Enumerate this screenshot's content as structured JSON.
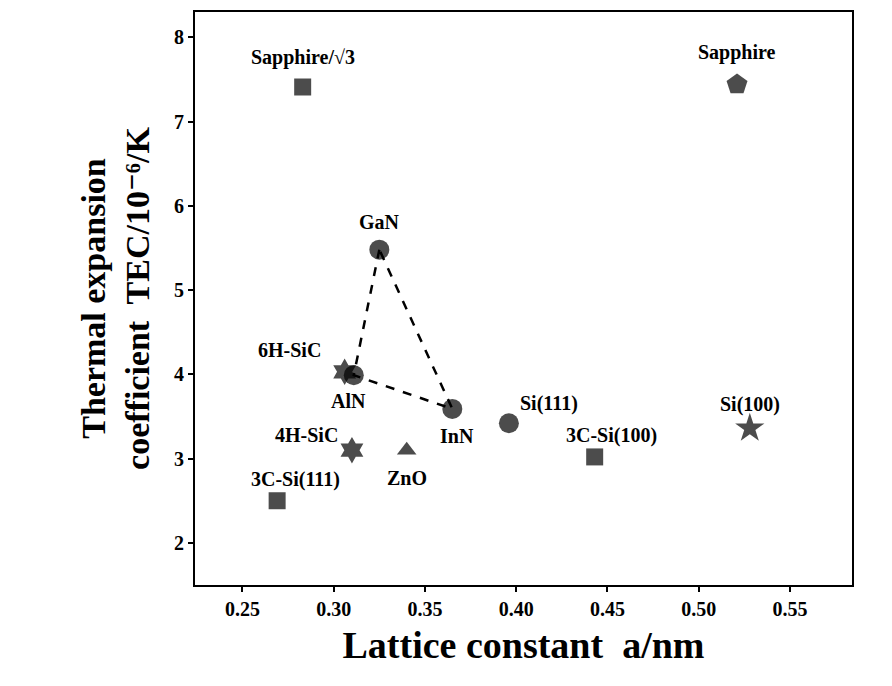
{
  "chart_data": {
    "type": "scatter",
    "xlabel": "Lattice constant  a/nm",
    "ylabel": "Thermal expansion\ncoefficient  TEC/10⁻⁶/K",
    "xlim": [
      0.224,
      0.584
    ],
    "ylim": [
      1.5,
      8.3
    ],
    "xticks": [
      0.25,
      {
        "value": 0.3,
        "label": "0.30"
      },
      0.35,
      {
        "value": 0.4,
        "label": "0.40"
      },
      0.45,
      {
        "value": 0.5,
        "label": "0.50"
      },
      0.55
    ],
    "yticks": [
      2,
      3,
      4,
      5,
      6,
      7,
      8
    ],
    "grid": false,
    "color": "#000000",
    "points": [
      {
        "label": "Sapphire/√3",
        "x": 0.283,
        "y": 7.41,
        "marker": "square"
      },
      {
        "label": "Sapphire",
        "x": 0.521,
        "y": 7.44,
        "marker": "pentagon"
      },
      {
        "label": "GaN",
        "x": 0.325,
        "y": 5.48,
        "marker": "circle"
      },
      {
        "label": "AlN",
        "x": 0.311,
        "y": 3.99,
        "marker": "circle"
      },
      {
        "label": "6H-SiC",
        "x": 0.306,
        "y": 4.03,
        "marker": "hexagram"
      },
      {
        "label": "InN",
        "x": 0.365,
        "y": 3.59,
        "marker": "circle"
      },
      {
        "label": "Si(111)",
        "x": 0.396,
        "y": 3.42,
        "marker": "circle"
      },
      {
        "label": "4H-SiC",
        "x": 0.31,
        "y": 3.1,
        "marker": "hexagram"
      },
      {
        "label": "ZnO",
        "x": 0.34,
        "y": 3.1,
        "marker": "triangle-up"
      },
      {
        "label": "3C-Si(111)",
        "x": 0.269,
        "y": 2.5,
        "marker": "square"
      },
      {
        "label": "3C-Si(100)",
        "x": 0.443,
        "y": 3.02,
        "marker": "square"
      },
      {
        "label": "Si(100)",
        "x": 0.528,
        "y": 3.36,
        "marker": "star"
      }
    ],
    "outline": {
      "points": [
        "GaN",
        "AlN",
        "InN",
        "GaN"
      ],
      "line_style": "dash"
    }
  }
}
